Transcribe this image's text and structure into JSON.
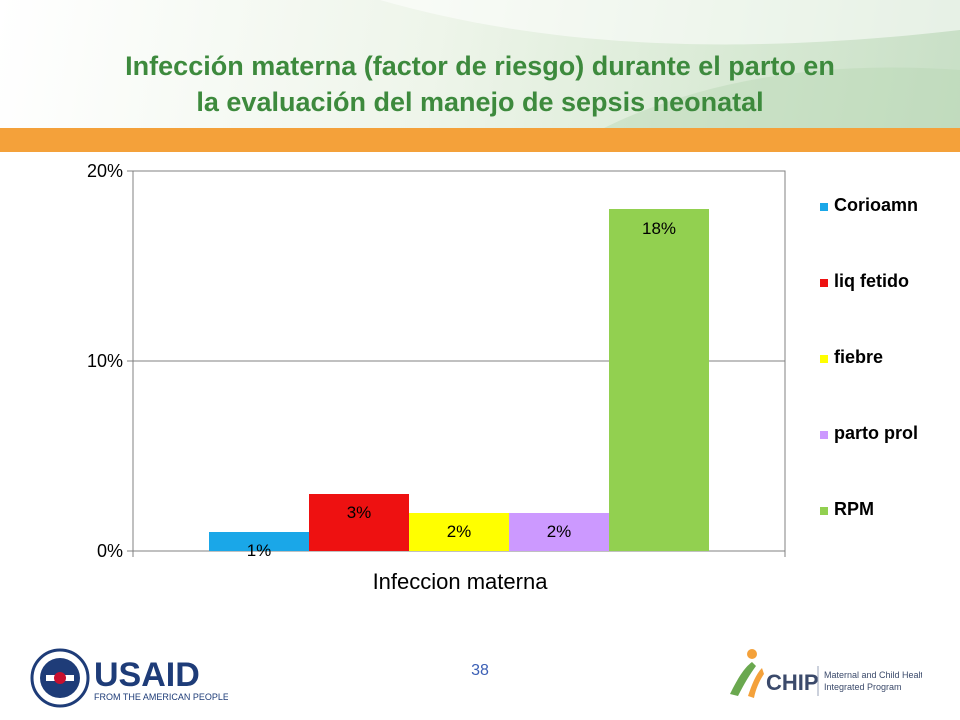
{
  "slide": {
    "title_line1": "Infección materna (factor de riesgo) durante el parto en",
    "title_line2": "la evaluación del manejo de sepsis neonatal",
    "page_number": "38"
  },
  "logos": {
    "usaid_text": "USAID",
    "usaid_tagline": "FROM THE AMERICAN PEOPLE",
    "mchip_text": "CHIP",
    "mchip_tagline1": "Maternal and Child Health",
    "mchip_tagline2": "Integrated Program"
  },
  "colors": {
    "title": "#3d8a3d",
    "orange_band": "#f4a13a",
    "page_number": "#3b5fb5"
  },
  "chart_data": {
    "type": "bar",
    "xlabel": "Infeccion materna",
    "ylabel": "",
    "ylim": [
      0,
      20
    ],
    "yticks": [
      {
        "value": 0,
        "label": "0%"
      },
      {
        "value": 10,
        "label": "10%"
      },
      {
        "value": 20,
        "label": "20%"
      }
    ],
    "grid": true,
    "legend_position": "right",
    "series": [
      {
        "name": "Corioamn",
        "value": 1,
        "label": "1%",
        "color": "#1aa7e8"
      },
      {
        "name": "liq fetido",
        "value": 3,
        "label": "3%",
        "color": "#ee1111"
      },
      {
        "name": "fiebre",
        "value": 2,
        "label": "2%",
        "color": "#ffff00"
      },
      {
        "name": "parto prol",
        "value": 2,
        "label": "2%",
        "color": "#cc99ff"
      },
      {
        "name": "RPM",
        "value": 18,
        "label": "18%",
        "color": "#92d050"
      }
    ]
  }
}
